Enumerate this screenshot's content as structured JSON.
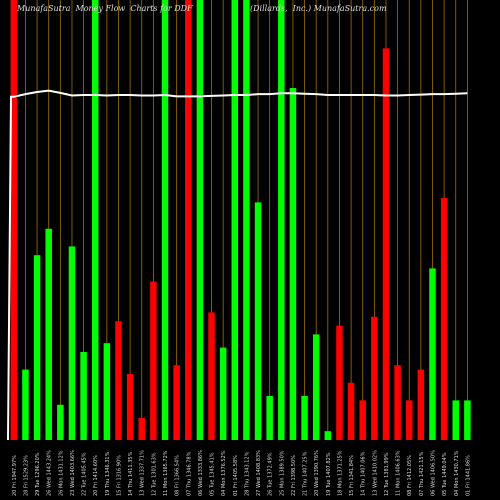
{
  "header": {
    "left": "MunafaSutra  Money Flow  Charts for DDF",
    "right": "(Dillards,  Inc.) MunafaSutra.com"
  },
  "colors": {
    "background": "#000000",
    "up": "#00ff00",
    "down": "#ff0000",
    "line": "#ffffff",
    "grid": "#b8860b",
    "text": "#dddddd"
  },
  "chart_data": {
    "type": "bar",
    "title": "MunafaSutra  Money Flow  Charts for DDF",
    "subtitle": "(Dillards,  Inc.) MunafaSutra.com",
    "ylim": [
      0,
      100
    ],
    "grid": "vertical",
    "series": [
      {
        "values": [
          100,
          16,
          42,
          48,
          8,
          44,
          20,
          100,
          22,
          27,
          15,
          5,
          36,
          100,
          17,
          100,
          100,
          29,
          21,
          100,
          100,
          54,
          10,
          100,
          80,
          10,
          24,
          2,
          26,
          13,
          9,
          28,
          89,
          17,
          9,
          16,
          39,
          55,
          9,
          9
        ],
        "direction": [
          "down",
          "up",
          "up",
          "up",
          "up",
          "up",
          "up",
          "up",
          "up",
          "down",
          "down",
          "down",
          "down",
          "up",
          "down",
          "down",
          "up",
          "down",
          "up",
          "up",
          "up",
          "up",
          "up",
          "up",
          "up",
          "up",
          "up",
          "up",
          "down",
          "down",
          "down",
          "down",
          "down",
          "down",
          "down",
          "down",
          "up",
          "down",
          "up",
          "up"
        ]
      },
      {
        "type": "line",
        "values": [
          78,
          78.6,
          79.1,
          79.4,
          78.9,
          78.3,
          78.4,
          78.4,
          78.3,
          78.4,
          78.4,
          78.3,
          78.3,
          78.4,
          78.1,
          78.1,
          78.1,
          78.2,
          78.3,
          78.4,
          78.4,
          78.6,
          78.6,
          78.8,
          78.8,
          78.7,
          78.6,
          78.4,
          78.4,
          78.4,
          78.4,
          78.4,
          78.3,
          78.3,
          78.4,
          78.5,
          78.6,
          78.6,
          78.7,
          78.8
        ]
      }
    ],
    "categories": [
      "20 Fri 1947.97%",
      "28 Fri 1529.23%",
      "29 Tue 1296.20%",
      "26 Wed 1443.24%",
      "26 Mon 1431.12%",
      "23 Wed 1403.66%",
      "22 Tue 1405.45%",
      "20 Fri 1414.60%",
      "19 Thu 1346.31%",
      "15 Fri 1316.90%",
      "14 Thu 1411.35%",
      "13 Wed 1337.71%",
      "12 Tue 1301.63%",
      "11 Mon 1365.72%",
      "08 Fri 1366.54%",
      "07 Thu 1346.78%",
      "06 Wed 1333.86%",
      "05 Tue 1345.41%",
      "04 Mon 1376.52%",
      "01 Fri 1405.58%",
      "28 Thu 1343.12%",
      "27 Wed 1408.83%",
      "26 Tue 1372.49%",
      "25 Mon 1389.50%",
      "22 Fri 1398.50%",
      "21 Thu 1407.25%",
      "20 Wed 1390.76%",
      "19 Tue 1407.82%",
      "18 Mon 1371.25%",
      "15 Fri 1341.84%",
      "14 Thu 1407.06%",
      "13 Wed 1410.02%",
      "12 Tue 1381.99%",
      "11 Mon 1406.63%",
      "08 Fri 1412.05%",
      "07 Thu 1421.15%",
      "06 Wed 1406.50%",
      "05 Tue 1449.04%",
      "04 Mon 1430.71%",
      "01 Fri 1441.86%"
    ]
  }
}
